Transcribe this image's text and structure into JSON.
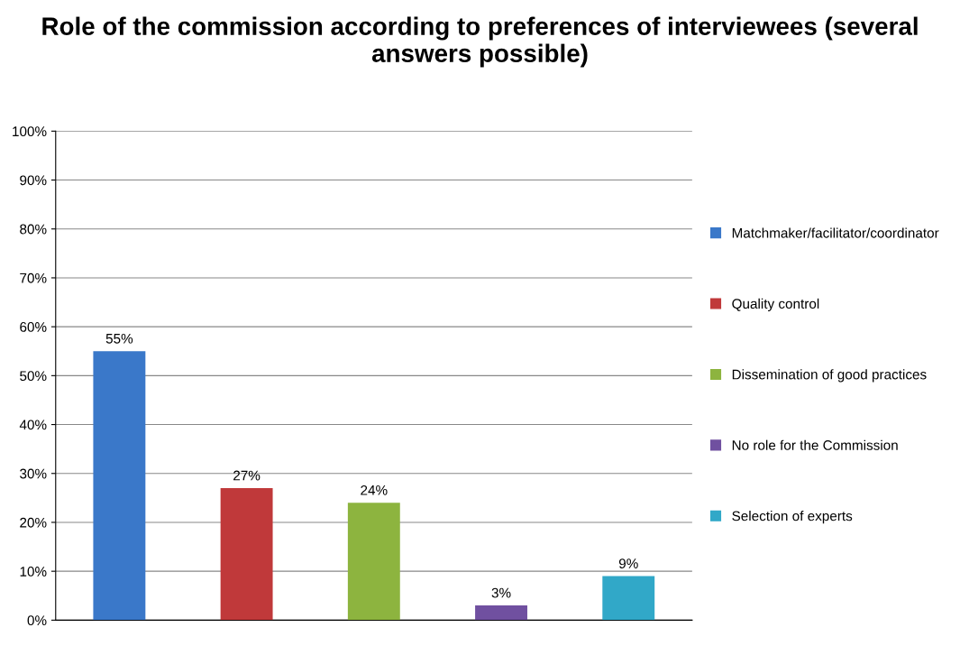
{
  "chart_data": {
    "type": "bar",
    "title": "Role of the commission according to preferences of interviewees (several answers possible)",
    "categories": [
      null
    ],
    "series": [
      {
        "name": "Matchmaker/facilitator/coordinator",
        "color": "#3a78c9",
        "values": [
          55
        ],
        "value_labels": [
          "55%"
        ]
      },
      {
        "name": "Quality control",
        "color": "#c0393a",
        "values": [
          27
        ],
        "value_labels": [
          "27%"
        ]
      },
      {
        "name": "Dissemination of good practices",
        "color": "#8db43f",
        "values": [
          24
        ],
        "value_labels": [
          "24%"
        ]
      },
      {
        "name": "No role for the Commission",
        "color": "#7050a0",
        "values": [
          3
        ],
        "value_labels": [
          "3%"
        ]
      },
      {
        "name": "Selection of experts",
        "color": "#31a8c8",
        "values": [
          9
        ],
        "value_labels": [
          "9%"
        ]
      }
    ],
    "ylim": [
      0,
      100
    ],
    "yticks": [
      {
        "value": 0,
        "label": "0%"
      },
      {
        "value": 10,
        "label": "10%"
      },
      {
        "value": 20,
        "label": "20%"
      },
      {
        "value": 30,
        "label": "30%"
      },
      {
        "value": 40,
        "label": "40%"
      },
      {
        "value": 50,
        "label": "50%"
      },
      {
        "value": 60,
        "label": "60%"
      },
      {
        "value": 70,
        "label": "70%"
      },
      {
        "value": 80,
        "label": "80%"
      },
      {
        "value": 90,
        "label": "90%"
      },
      {
        "value": 100,
        "label": "100%"
      }
    ],
    "grid": "y",
    "legend": "right"
  }
}
